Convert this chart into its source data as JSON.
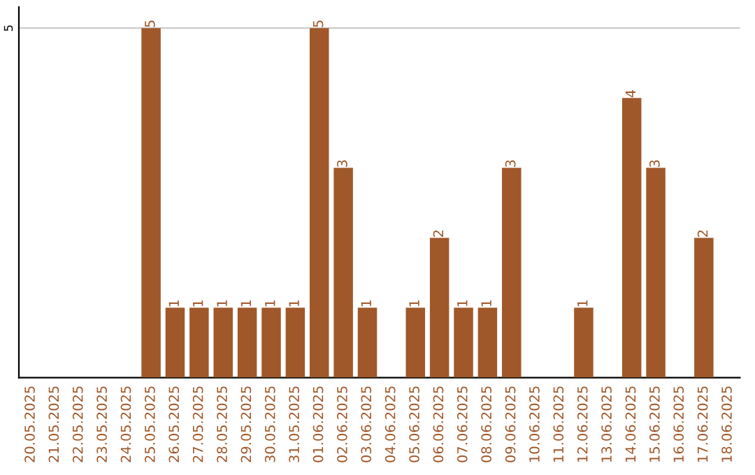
{
  "chart_data": {
    "type": "bar",
    "categories": [
      "20.05.2025",
      "21.05.2025",
      "22.05.2025",
      "23.05.2025",
      "24.05.2025",
      "25.05.2025",
      "26.05.2025",
      "27.05.2025",
      "28.05.2025",
      "29.05.2025",
      "30.05.2025",
      "31.05.2025",
      "01.06.2025",
      "02.06.2025",
      "03.06.2025",
      "04.06.2025",
      "05.06.2025",
      "06.06.2025",
      "07.06.2025",
      "08.06.2025",
      "09.06.2025",
      "10.06.2025",
      "11.06.2025",
      "12.06.2025",
      "13.06.2025",
      "14.06.2025",
      "15.06.2025",
      "16.06.2025",
      "17.06.2025",
      "18.06.2025"
    ],
    "values": [
      0,
      0,
      0,
      0,
      0,
      5,
      1,
      1,
      1,
      1,
      1,
      1,
      5,
      3,
      1,
      0,
      1,
      2,
      1,
      1,
      3,
      0,
      0,
      1,
      0,
      4,
      3,
      0,
      2,
      0
    ],
    "value_labels": [
      null,
      null,
      null,
      null,
      null,
      "5",
      "1",
      "1",
      "1",
      "1",
      "1",
      "1",
      "5",
      "3",
      "1",
      null,
      "1",
      "2",
      "1",
      "1",
      "3",
      null,
      null,
      "1",
      null,
      "4",
      "3",
      null,
      "2",
      null
    ],
    "color": "#a0582a",
    "ylim": [
      0,
      5.3
    ],
    "yticks": [
      5
    ],
    "grid": "y",
    "legend": false
  }
}
